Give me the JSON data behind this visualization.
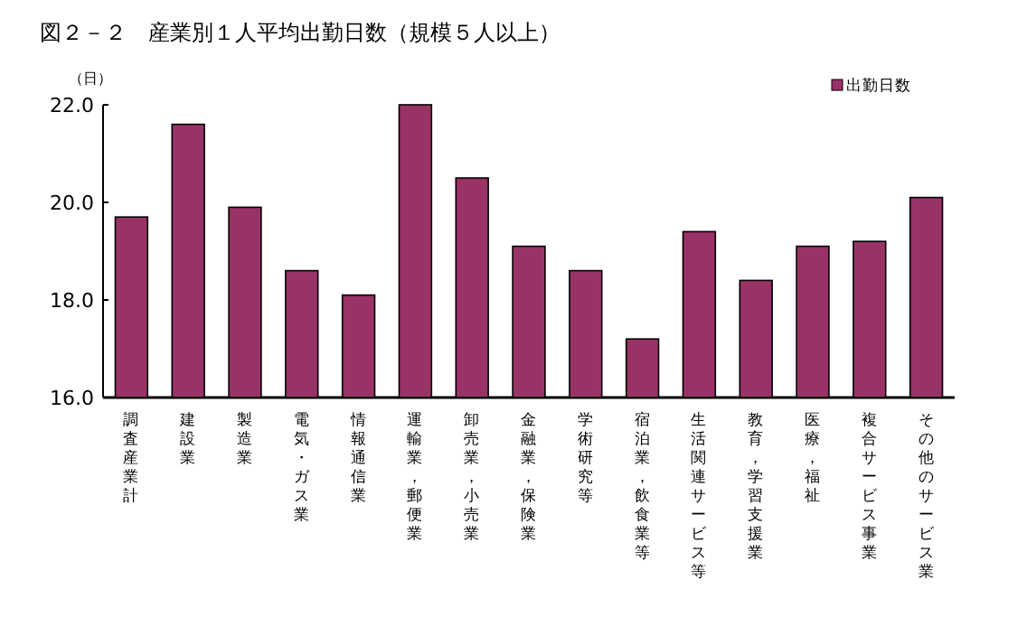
{
  "chart_data": {
    "type": "bar",
    "title": "図２－２　産業別１人平均出勤日数（規模５人以上）",
    "ylabel": "（日）",
    "categories": [
      "調査産業計",
      "建設業",
      "製造業",
      "電気・ガス業",
      "情報通信業",
      "運輸業，郵便業",
      "卸売業，小売業",
      "金融業，保険業",
      "学術研究等",
      "宿泊業，飲食業等",
      "生活関連サービス等",
      "教育，学習支援業",
      "医療，福祉",
      "複合サービス事業",
      "その他のサービス業"
    ],
    "series": [
      {
        "name": "出勤日数",
        "color": "#993366",
        "values": [
          19.7,
          21.6,
          19.9,
          18.6,
          18.1,
          22.0,
          20.5,
          19.1,
          18.6,
          17.2,
          19.4,
          18.4,
          19.1,
          19.2,
          20.1
        ]
      }
    ],
    "ylim": [
      16,
      22
    ],
    "yticks": [
      {
        "value": 16,
        "label": "16.0"
      },
      {
        "value": 18,
        "label": "18.0"
      },
      {
        "value": 20,
        "label": "20.0"
      },
      {
        "value": 22,
        "label": "22.0"
      }
    ],
    "legend": "top right"
  }
}
